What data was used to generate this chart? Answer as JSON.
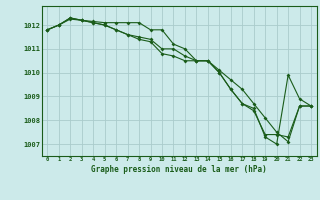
{
  "background_color": "#cceaea",
  "grid_color": "#aacccc",
  "line_color": "#1a5c1a",
  "title": "Graphe pression niveau de la mer (hPa)",
  "xlim": [
    -0.5,
    23.5
  ],
  "ylim": [
    1006.5,
    1012.8
  ],
  "yticks": [
    1007,
    1008,
    1009,
    1010,
    1011,
    1012
  ],
  "xticks": [
    0,
    1,
    2,
    3,
    4,
    5,
    6,
    7,
    8,
    9,
    10,
    11,
    12,
    13,
    14,
    15,
    16,
    17,
    18,
    19,
    20,
    21,
    22,
    23
  ],
  "series1": [
    1011.8,
    1012.0,
    1012.25,
    1012.2,
    1012.15,
    1012.1,
    1012.1,
    1012.1,
    1012.1,
    1011.8,
    1011.8,
    1011.2,
    1011.0,
    1010.5,
    1010.5,
    1010.1,
    1009.7,
    1009.3,
    1008.7,
    1008.1,
    1007.5,
    1007.1,
    1008.6,
    1008.6
  ],
  "series2": [
    1011.8,
    1012.0,
    1012.3,
    1012.2,
    1012.1,
    1012.0,
    1011.8,
    1011.6,
    1011.5,
    1011.4,
    1011.0,
    1011.0,
    1010.7,
    1010.5,
    1010.5,
    1010.0,
    1009.3,
    1008.7,
    1008.5,
    1007.3,
    1007.0,
    1009.9,
    1008.9,
    1008.6
  ],
  "series3": [
    1011.8,
    1012.0,
    1012.3,
    1012.2,
    1012.1,
    1012.0,
    1011.8,
    1011.6,
    1011.4,
    1011.3,
    1010.8,
    1010.7,
    1010.5,
    1010.5,
    1010.5,
    1010.0,
    1009.3,
    1008.7,
    1008.4,
    1007.4,
    1007.4,
    1007.3,
    1008.6,
    1008.6
  ]
}
